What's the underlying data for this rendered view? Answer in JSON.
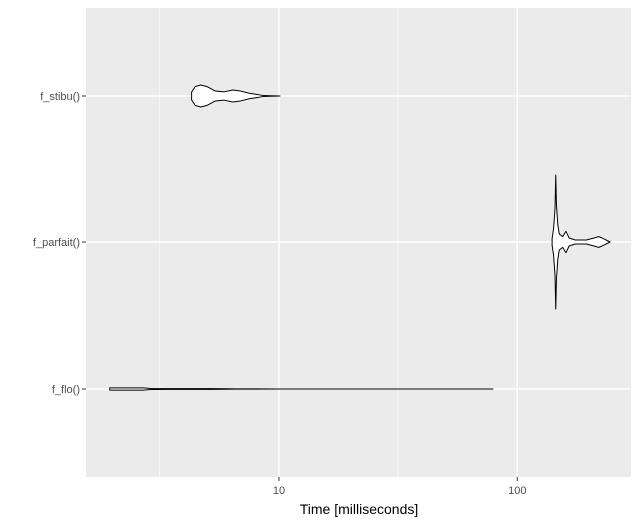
{
  "chart_data": {
    "type": "violin",
    "orientation": "horizontal",
    "xlabel": "Time [milliseconds]",
    "x_scale": "log10",
    "xlim": [
      1.55,
      300
    ],
    "x_ticks": [
      {
        "value": 10,
        "label": "10"
      },
      {
        "value": 100,
        "label": "100"
      }
    ],
    "x_minor_ticks": [
      3.16,
      31.6,
      316
    ],
    "grid": true,
    "categories": [
      "f_stibu()",
      "f_parfait()",
      "f_flo()"
    ],
    "series": [
      {
        "category": "f_stibu()",
        "profile": [
          [
            4.3,
            0.35
          ],
          [
            4.45,
            0.85
          ],
          [
            4.7,
            1.0
          ],
          [
            5.0,
            0.85
          ],
          [
            5.4,
            0.45
          ],
          [
            5.9,
            0.38
          ],
          [
            6.4,
            0.55
          ],
          [
            6.9,
            0.45
          ],
          [
            7.5,
            0.25
          ],
          [
            8.2,
            0.12
          ],
          [
            8.6,
            0.04
          ],
          [
            9.2,
            0.02
          ],
          [
            10.1,
            0.0
          ]
        ]
      },
      {
        "category": "f_parfait()",
        "profile": [
          [
            140,
            0.05
          ],
          [
            142,
            0.2
          ],
          [
            144,
            0.5
          ],
          [
            145,
            1.0
          ],
          [
            146,
            0.55
          ],
          [
            148,
            0.25
          ],
          [
            150,
            0.12
          ],
          [
            155,
            0.08
          ],
          [
            160,
            0.16
          ],
          [
            165,
            0.06
          ],
          [
            175,
            0.03
          ],
          [
            195,
            0.03
          ],
          [
            210,
            0.06
          ],
          [
            220,
            0.08
          ],
          [
            230,
            0.05
          ],
          [
            245,
            0.0
          ]
        ]
      },
      {
        "category": "f_flo()",
        "profile": [
          [
            1.95,
            0.18
          ],
          [
            2.2,
            0.18
          ],
          [
            2.7,
            0.18
          ],
          [
            2.9,
            0.09
          ],
          [
            3.5,
            0.07
          ],
          [
            4.5,
            0.06
          ],
          [
            5.2,
            0.06
          ],
          [
            6.0,
            0.05
          ],
          [
            6.5,
            0.012
          ],
          [
            10,
            0.01
          ],
          [
            30,
            0.008
          ],
          [
            79,
            0.0
          ]
        ]
      }
    ],
    "colors": {
      "panel": "#ebebeb",
      "grid_major": "#ffffff",
      "violin_fill": "#ffffff",
      "violin_stroke": "#000000",
      "axis_text": "#4d4d4d",
      "axis_title": "#000000"
    }
  }
}
